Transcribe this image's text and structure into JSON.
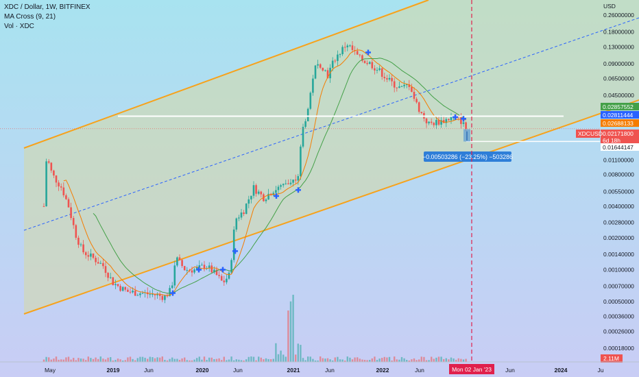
{
  "header": {
    "symbol_line": "XDC / Dollar, 1W, BITFINEX",
    "indicator_1": "MA Cross (9, 21)",
    "indicator_2": "Vol · XDC"
  },
  "colors": {
    "bg_top": "#a8e3f0",
    "bg_bottom": "#c9cdf5",
    "channel": "#f7a21b",
    "channel_fill": "#d6d9a6",
    "midline": "#2962ff",
    "up": "#26a69a",
    "down": "#ef5350",
    "ma_fast": "#f57c00",
    "ma_slow": "#43a047",
    "cross_marker": "#2962ff",
    "cursor_line": "#e0204c",
    "white_line": "#ffffff"
  },
  "chart_data": {
    "type": "candlestick",
    "symbol": "XDCUSD",
    "yscale": "log",
    "ylim": [
      0.0002,
      0.3
    ],
    "y_axis_unit": "USD",
    "y_ticks": [
      "0.26000000",
      "0.18000000",
      "0.13000000",
      "0.09000000",
      "0.06500000",
      "0.04500000",
      "0.01100000",
      "0.00800000",
      "0.00550000",
      "0.00400000",
      "0.00280000",
      "0.00200000",
      "0.00140000",
      "0.00100000",
      "0.00070000",
      "0.00050000",
      "0.00036000",
      "0.00026000",
      "0.00018000"
    ],
    "x_ticks": [
      "May",
      "2019",
      "Jun",
      "2020",
      "Jun",
      "2021",
      "Jun",
      "2022",
      "Jun",
      "Jun",
      "2024",
      "Ju"
    ],
    "price_labels": [
      {
        "text": "0.02857552",
        "color": "#43a047"
      },
      {
        "text": "0.02811444",
        "color": "#2962ff"
      },
      {
        "text": "0.02688133",
        "color": "#f57c00"
      },
      {
        "text": "0.02171800",
        "color": "#ef5350"
      },
      {
        "text": "6d 18h",
        "color": "#ef5350"
      },
      {
        "text": "0.01644147",
        "color": "#ffffff"
      }
    ],
    "symbol_tag": "XDCUSD",
    "measurement": "−0.00503286 (−23.25%) −503286",
    "cursor_date": "Mon 02 Jan '23",
    "volume_label": "2.11M",
    "close_price": 0.021718,
    "horizontal_level": 0.0286,
    "lower_level": 0.01644,
    "series": [
      {
        "name": "MA 9"
      },
      {
        "name": "MA 21"
      }
    ]
  }
}
